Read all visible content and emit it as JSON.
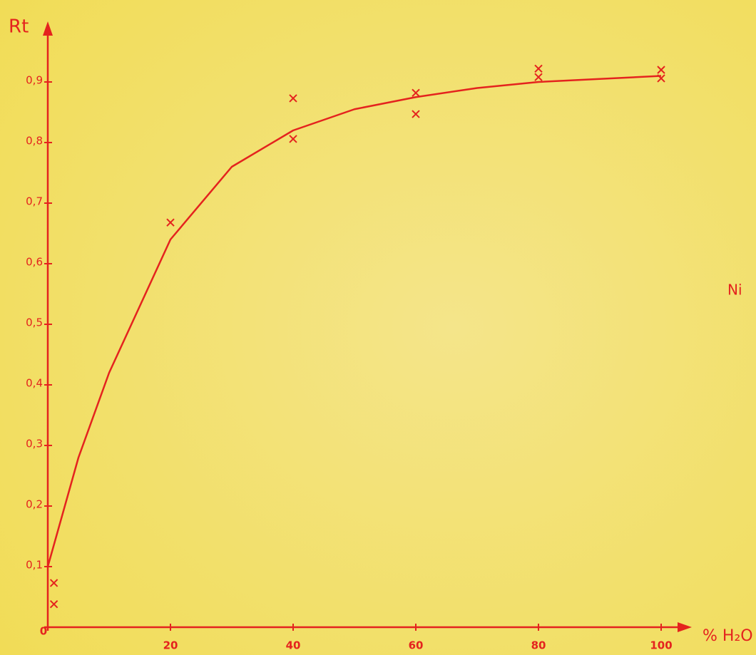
{
  "chart_data": {
    "type": "scatter",
    "y_label": "Rt",
    "x_label": "% H₂O",
    "annotation": "Ni",
    "xlim": [
      0,
      105
    ],
    "ylim": [
      0,
      1
    ],
    "xticks": [
      0,
      20,
      40,
      60,
      80,
      100
    ],
    "yticks": [
      {
        "value": 0.1,
        "label": "0,1"
      },
      {
        "value": 0.2,
        "label": "0,2"
      },
      {
        "value": 0.3,
        "label": "0,3"
      },
      {
        "value": 0.4,
        "label": "0,4"
      },
      {
        "value": 0.5,
        "label": "0,5"
      },
      {
        "value": 0.6,
        "label": "0,6"
      },
      {
        "value": 0.7,
        "label": "0,7"
      },
      {
        "value": 0.8,
        "label": "0,8"
      },
      {
        "value": 0.9,
        "label": "0,9"
      }
    ],
    "grid": false,
    "series": [
      {
        "type": "scatter",
        "color": "#e4231e",
        "x": [
          1,
          1,
          20,
          40,
          40,
          60,
          60,
          80,
          80,
          100,
          100
        ],
        "values": [
          0.073,
          0.038,
          0.668,
          0.873,
          0.806,
          0.882,
          0.847,
          0.922,
          0.908,
          0.92,
          0.906
        ]
      },
      {
        "type": "line",
        "color": "#e4231e",
        "x": [
          0,
          5,
          10,
          20,
          30,
          40,
          50,
          60,
          70,
          80,
          90,
          100
        ],
        "values": [
          0.1,
          0.28,
          0.42,
          0.64,
          0.76,
          0.82,
          0.855,
          0.875,
          0.89,
          0.9,
          0.905,
          0.91
        ]
      }
    ]
  }
}
